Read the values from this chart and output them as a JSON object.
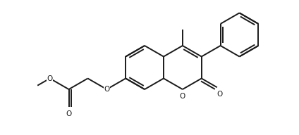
{
  "bg_color": "#ffffff",
  "line_color": "#1a1a1a",
  "line_width": 1.4,
  "figsize": [
    4.24,
    1.92
  ],
  "dpi": 100,
  "xlim": [
    0.0,
    4.24
  ],
  "ylim": [
    0.0,
    1.92
  ]
}
